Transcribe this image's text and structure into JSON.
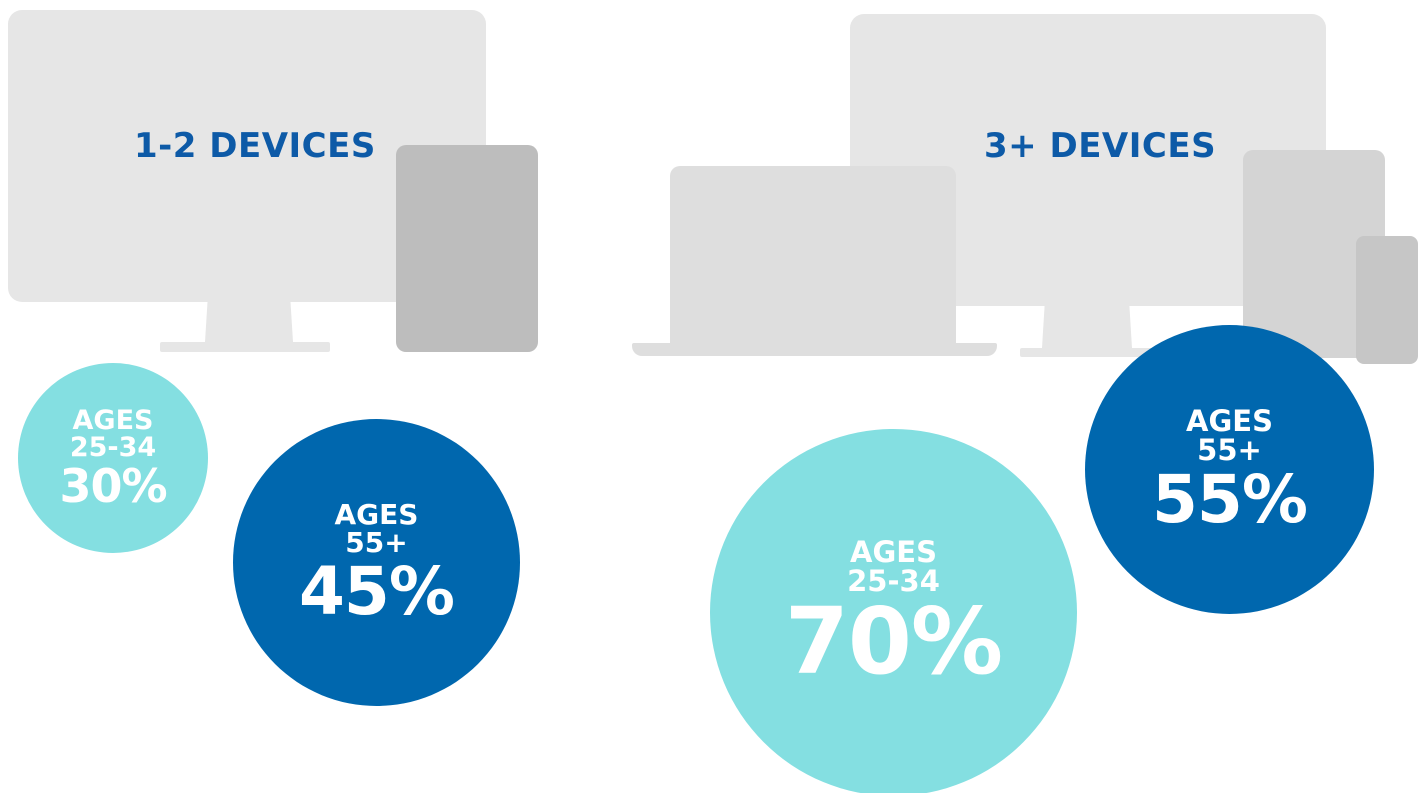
{
  "groups": [
    {
      "heading": "1-2 DEVICES",
      "bubbles": [
        {
          "line1": "AGES",
          "line2": "25-34",
          "percent": "30%",
          "color": "#84dfe1"
        },
        {
          "line1": "AGES",
          "line2": "55+",
          "percent": "45%",
          "color": "#0067ae"
        }
      ]
    },
    {
      "heading": "3+ DEVICES",
      "bubbles": [
        {
          "line1": "AGES",
          "line2": "25-34",
          "percent": "70%",
          "color": "#84dfe1"
        },
        {
          "line1": "AGES",
          "line2": "55+",
          "percent": "55%",
          "color": "#0067ae"
        }
      ]
    }
  ],
  "colors": {
    "heading": "#0d5aa7",
    "cyan": "#84dfe1",
    "navy": "#0067ae",
    "device_light": "#e6e6e6",
    "device_dark": "#bdbdbd"
  },
  "icons": {
    "left_group": [
      "monitor-icon",
      "tablet-icon"
    ],
    "right_group": [
      "laptop-icon",
      "monitor-icon",
      "tablet-icon",
      "phone-icon"
    ]
  }
}
